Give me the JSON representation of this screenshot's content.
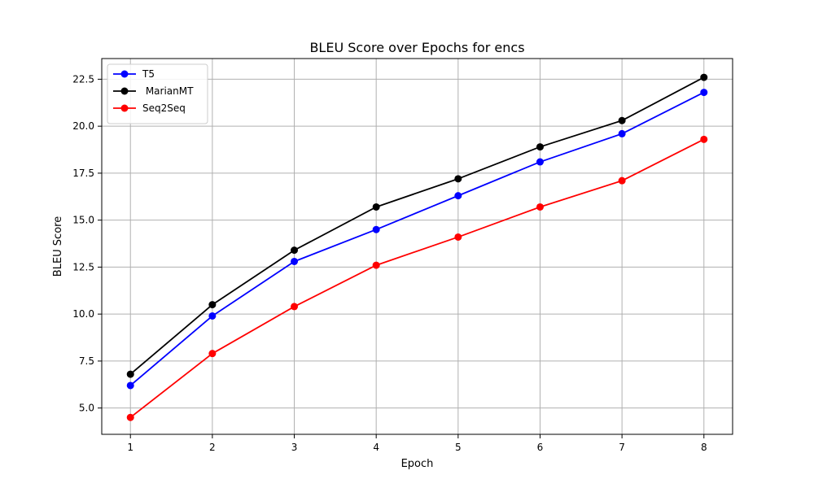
{
  "chart_data": {
    "type": "line",
    "title": "BLEU Score over Epochs for encs",
    "xlabel": "Epoch",
    "ylabel": "BLEU Score",
    "x": [
      1,
      2,
      3,
      4,
      5,
      6,
      7,
      8
    ],
    "xticks": [
      "1",
      "2",
      "3",
      "4",
      "5",
      "6",
      "7",
      "8"
    ],
    "yticks": [
      "5.0",
      "7.5",
      "10.0",
      "12.5",
      "15.0",
      "17.5",
      "20.0",
      "22.5"
    ],
    "xlim": [
      0.65,
      8.35
    ],
    "ylim": [
      3.6,
      23.6
    ],
    "grid": true,
    "legend_position": "top-left",
    "series": [
      {
        "name": "T5",
        "color": "#0000ff",
        "marker": "circle",
        "values": [
          6.2,
          9.9,
          12.8,
          14.5,
          16.3,
          18.1,
          19.6,
          21.8
        ]
      },
      {
        "name": " MarianMT",
        "color": "#000000",
        "marker": "circle",
        "values": [
          6.8,
          10.5,
          13.4,
          15.7,
          17.2,
          18.9,
          20.3,
          22.6
        ]
      },
      {
        "name": "Seq2Seq",
        "color": "#ff0000",
        "marker": "circle",
        "values": [
          4.5,
          7.9,
          10.4,
          12.6,
          14.1,
          15.7,
          17.1,
          19.3
        ]
      }
    ]
  }
}
